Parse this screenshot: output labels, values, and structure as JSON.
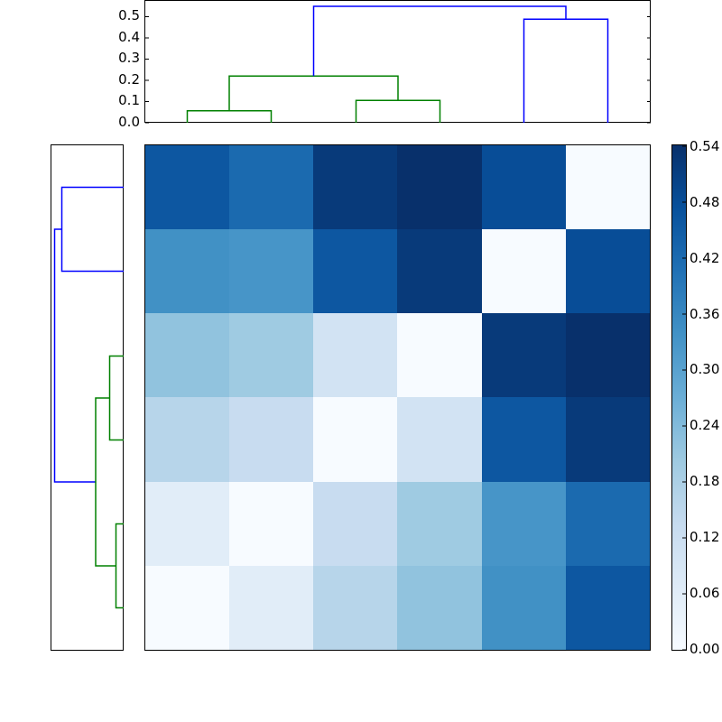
{
  "chart_data": [
    {
      "type": "heatmap",
      "title": "",
      "xlabel": "",
      "ylabel": "",
      "rows": 6,
      "cols": 6,
      "values": [
        [
          0.46,
          0.42,
          0.52,
          0.54,
          0.48,
          0.0
        ],
        [
          0.34,
          0.33,
          0.46,
          0.52,
          0.0,
          0.48
        ],
        [
          0.22,
          0.2,
          0.1,
          0.0,
          0.52,
          0.54
        ],
        [
          0.16,
          0.13,
          0.0,
          0.1,
          0.46,
          0.52
        ],
        [
          0.06,
          0.0,
          0.13,
          0.2,
          0.33,
          0.42
        ],
        [
          0.0,
          0.06,
          0.16,
          0.22,
          0.34,
          0.46
        ]
      ],
      "colormap": "Blues",
      "vmin": 0.0,
      "vmax": 0.54,
      "colorbar": {
        "ticks": [
          "0.00",
          "0.06",
          "0.12",
          "0.18",
          "0.24",
          "0.30",
          "0.36",
          "0.42",
          "0.48",
          "0.54"
        ],
        "position": "right"
      }
    },
    {
      "type": "dendrogram",
      "orientation": "top",
      "ylim": [
        0.0,
        0.57
      ],
      "yticks": [
        "0.0",
        "0.1",
        "0.2",
        "0.3",
        "0.4",
        "0.5"
      ],
      "leaves": 6,
      "merges": [
        {
          "left": "leaf0",
          "right": "leaf1",
          "height": 0.06,
          "color": "green"
        },
        {
          "left": "leaf2",
          "right": "leaf3",
          "height": 0.11,
          "color": "green"
        },
        {
          "left": "(0,1)",
          "right": "(2,3)",
          "height": 0.22,
          "color": "green"
        },
        {
          "left": "leaf4",
          "right": "leaf5",
          "height": 0.49,
          "color": "blue"
        },
        {
          "left": "(0-3)",
          "right": "(4,5)",
          "height": 0.55,
          "color": "blue"
        }
      ]
    },
    {
      "type": "dendrogram",
      "orientation": "left",
      "leaves": 6,
      "merges": [
        {
          "rows": [
            0,
            1
          ],
          "height": 0.49,
          "color": "blue"
        },
        {
          "rows": [
            2,
            3
          ],
          "height": 0.11,
          "color": "green"
        },
        {
          "rows": [
            4,
            5
          ],
          "height": 0.06,
          "color": "green"
        },
        {
          "rows": [
            "2-3",
            "4-5"
          ],
          "height": 0.22,
          "color": "green"
        },
        {
          "rows": [
            "0-1",
            "2-5"
          ],
          "height": 0.55,
          "color": "blue"
        }
      ]
    }
  ],
  "colors": {
    "cluster_green": "#008000",
    "cluster_blue": "#0000ff",
    "axis": "#000000"
  }
}
